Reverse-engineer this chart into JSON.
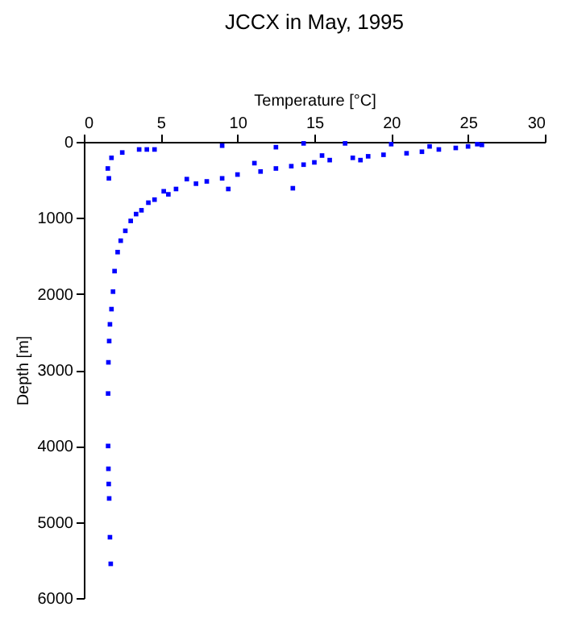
{
  "chart_data": {
    "type": "scatter",
    "title": "JCCX in May, 1995",
    "xlabel": "Temperature [°C]",
    "ylabel": "Depth [m]",
    "xlim": [
      0,
      30
    ],
    "xticks": [
      0,
      5,
      10,
      15,
      20,
      25,
      30
    ],
    "ylim": [
      6000,
      0
    ],
    "yticks": [
      0,
      1000,
      2000,
      3000,
      4000,
      5000,
      6000
    ],
    "marker": "square",
    "series": [
      {
        "color": "#0000ff",
        "x": [
          25.9,
          25.6,
          25.0,
          24.2,
          23.1,
          22.0,
          21.0,
          19.5,
          18.5,
          17.5,
          16.0,
          15.0,
          14.3,
          13.5,
          12.5,
          11.5,
          11.1,
          10.0,
          9.0,
          8.0,
          7.3,
          6.7,
          6.0,
          5.5,
          5.2,
          4.6,
          4.2,
          3.75,
          3.4,
          3.05,
          2.7,
          2.4,
          2.2,
          2.0,
          1.9,
          1.8,
          1.7,
          1.65,
          1.6,
          1.58,
          1.58,
          1.6,
          1.62,
          1.65,
          1.7,
          1.75,
          14.3,
          12.5,
          9.0,
          13.6,
          9.4,
          17.0,
          20.0,
          22.5,
          2.5,
          1.8,
          1.56,
          1.63,
          3.6,
          4.1,
          4.6,
          15.5,
          18.0
        ],
        "values": [
          40,
          30,
          60,
          80,
          100,
          130,
          150,
          170,
          190,
          210,
          240,
          270,
          300,
          320,
          350,
          390,
          280,
          430,
          480,
          520,
          550,
          490,
          620,
          690,
          650,
          760,
          800,
          900,
          950,
          1040,
          1170,
          1300,
          1450,
          1700,
          1970,
          2200,
          2400,
          2620,
          2900,
          3310,
          4000,
          4300,
          4500,
          4690,
          5200,
          5550,
          20,
          70,
          50,
          610,
          620,
          20,
          30,
          60,
          140,
          210,
          350,
          480,
          100,
          100,
          100,
          180,
          240
        ]
      }
    ]
  }
}
